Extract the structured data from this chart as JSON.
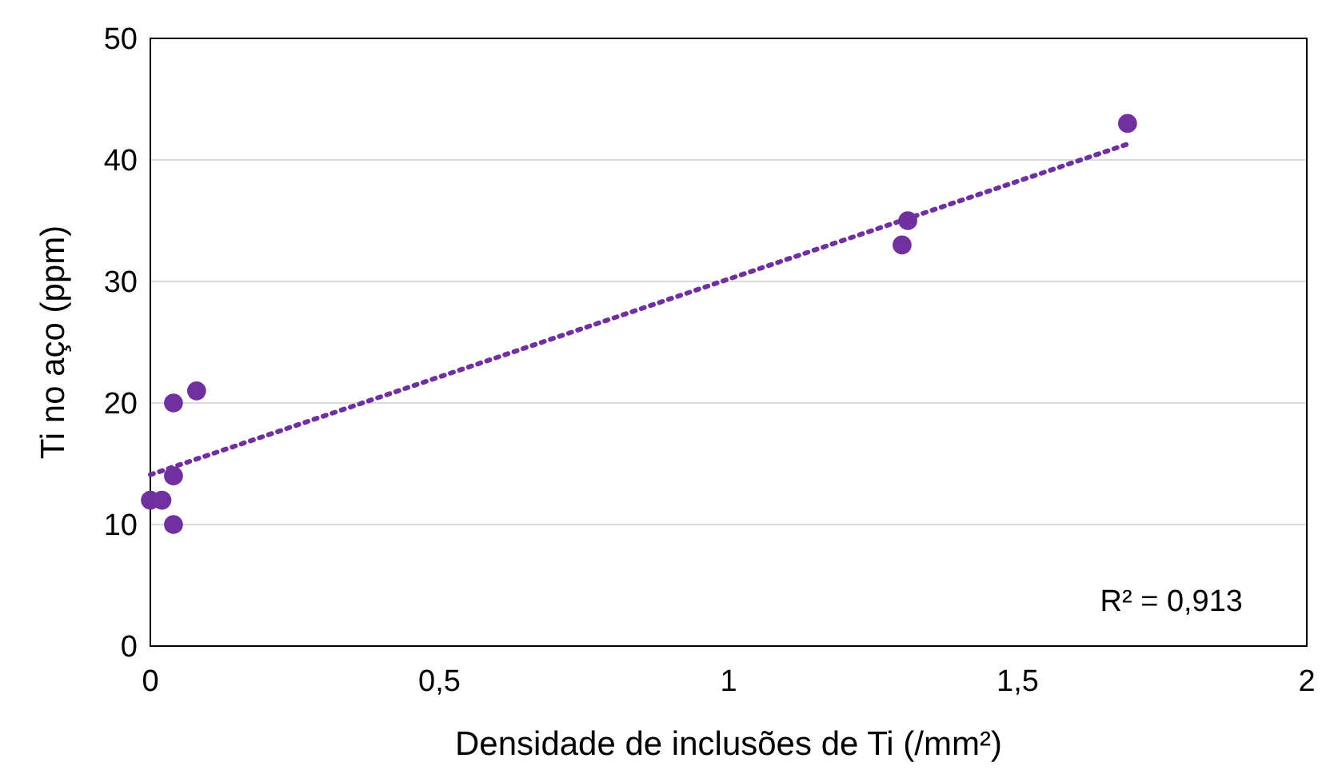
{
  "chart_data": {
    "type": "scatter",
    "xlabel": "Densidade de inclusões de Ti (/mm²)",
    "ylabel": "Ti no aço (ppm)",
    "xlim": [
      0,
      2
    ],
    "xticks": [
      0,
      {
        "value": 0.5,
        "label": "0,5"
      },
      1,
      {
        "value": 1.5,
        "label": "1,5"
      },
      2
    ],
    "ylim": [
      0,
      50
    ],
    "yticks": [
      0,
      10,
      20,
      30,
      40,
      50
    ],
    "grid": "y",
    "marker": "circle",
    "series": [
      {
        "color": "#7030a0",
        "x": [
          0,
          0.02,
          0.04,
          0.04,
          0.04,
          0.08,
          1.3,
          1.31,
          1.69
        ],
        "values": [
          12,
          12,
          14,
          10,
          20,
          21,
          33,
          35,
          43
        ]
      },
      {
        "type": "line",
        "line_style": "dotted",
        "marker": "none",
        "color": "#7030a0",
        "x": [
          0,
          1.69
        ],
        "values": [
          14.1,
          41.3
        ]
      }
    ],
    "annotations": [
      "R² = 0,913"
    ]
  }
}
